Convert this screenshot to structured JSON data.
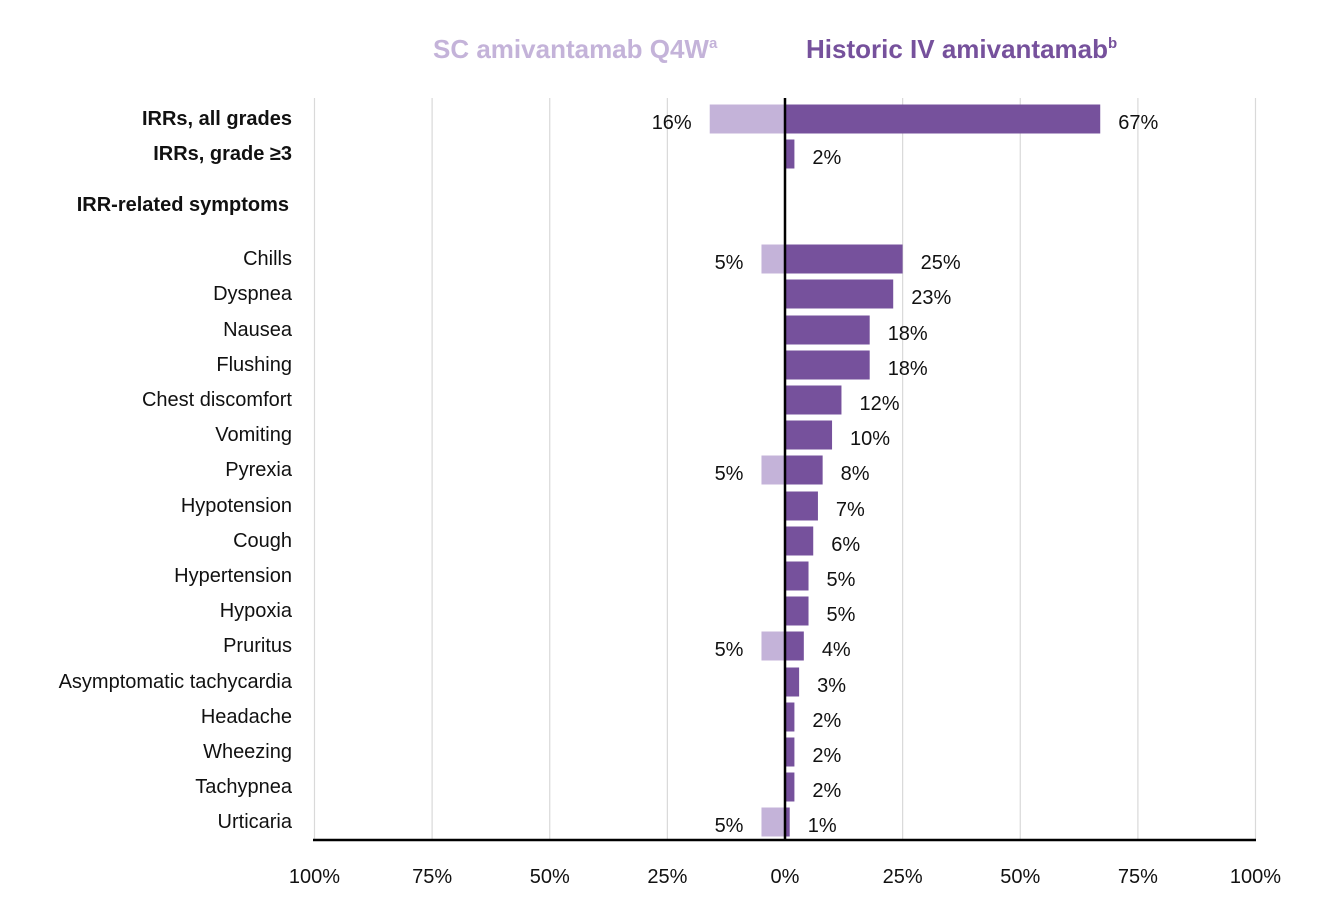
{
  "chart_data": {
    "type": "bar",
    "orientation": "horizontal-diverging",
    "legend": {
      "placement": "top",
      "items": [
        {
          "name": "SC amivantamab Q4W",
          "sup": "a",
          "color": "#c4b3d9"
        },
        {
          "name": "Historic IV amivantamab",
          "sup": "b",
          "color": "#76519c"
        }
      ]
    },
    "section_header": "IRR-related symptoms",
    "categories": [
      {
        "label": "IRRs, all grades",
        "bold": true,
        "left": 16,
        "right": 67
      },
      {
        "label": "IRRs, grade ≥3",
        "bold": true,
        "left": null,
        "right": 2
      },
      {
        "label": "Chills",
        "bold": false,
        "left": 5,
        "right": 25
      },
      {
        "label": "Dyspnea",
        "bold": false,
        "left": null,
        "right": 23
      },
      {
        "label": "Nausea",
        "bold": false,
        "left": null,
        "right": 18
      },
      {
        "label": "Flushing",
        "bold": false,
        "left": null,
        "right": 18
      },
      {
        "label": "Chest discomfort",
        "bold": false,
        "left": null,
        "right": 12
      },
      {
        "label": "Vomiting",
        "bold": false,
        "left": null,
        "right": 10
      },
      {
        "label": "Pyrexia",
        "bold": false,
        "left": 5,
        "right": 8
      },
      {
        "label": "Hypotension",
        "bold": false,
        "left": null,
        "right": 7
      },
      {
        "label": "Cough",
        "bold": false,
        "left": null,
        "right": 6
      },
      {
        "label": "Hypertension",
        "bold": false,
        "left": null,
        "right": 5
      },
      {
        "label": "Hypoxia",
        "bold": false,
        "left": null,
        "right": 5
      },
      {
        "label": "Pruritus",
        "bold": false,
        "left": 5,
        "right": 4
      },
      {
        "label": "Asymptomatic tachycardia",
        "bold": false,
        "left": null,
        "right": 3
      },
      {
        "label": "Headache",
        "bold": false,
        "left": null,
        "right": 2
      },
      {
        "label": "Wheezing",
        "bold": false,
        "left": null,
        "right": 2
      },
      {
        "label": "Tachypnea",
        "bold": false,
        "left": null,
        "right": 2
      },
      {
        "label": "Urticaria",
        "bold": false,
        "left": 5,
        "right": 1
      }
    ],
    "x_ticks": [
      "100%",
      "75%",
      "50%",
      "25%",
      "0%",
      "25%",
      "50%",
      "75%",
      "100%"
    ],
    "xlim": [
      -100,
      100
    ],
    "grid": true
  }
}
